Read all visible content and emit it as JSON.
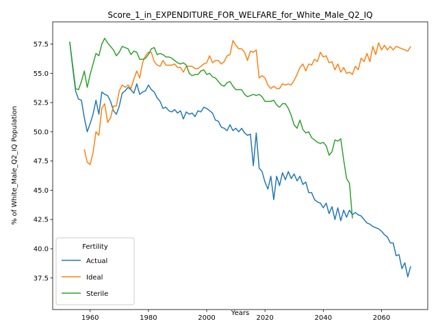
{
  "chart_data": {
    "type": "line",
    "title": "Score_1_in_EXPENDITURE_FOR_WELFARE_for_White_Male_Q2_IQ",
    "xlabel": "Years",
    "ylabel": "% of White_Male_Q2_IQ Population",
    "legend_title": "Fertility",
    "legend": "lower left",
    "grid": false,
    "xlim": [
      1947.15,
      2075.85
    ],
    "ylim": [
      34.8,
      59.4
    ],
    "xticks": [
      1960,
      1980,
      2000,
      2020,
      2040,
      2060
    ],
    "yticks": [
      37.5,
      {
        "value": 40,
        "label": "40.0"
      },
      42.5,
      {
        "value": 45,
        "label": "45.0"
      },
      47.5,
      {
        "value": 50,
        "label": "50.0"
      },
      52.5,
      {
        "value": 55,
        "label": "55.0"
      },
      57.5
    ],
    "x": [
      1953,
      1954,
      1955,
      1956,
      1957,
      1958,
      1959,
      1960,
      1961,
      1962,
      1963,
      1964,
      1965,
      1966,
      1967,
      1968,
      1969,
      1970,
      1971,
      1972,
      1973,
      1974,
      1975,
      1976,
      1977,
      1978,
      1979,
      1980,
      1981,
      1982,
      1983,
      1984,
      1985,
      1986,
      1987,
      1988,
      1989,
      1990,
      1991,
      1992,
      1993,
      1994,
      1995,
      1996,
      1997,
      1998,
      1999,
      2000,
      2001,
      2002,
      2003,
      2004,
      2005,
      2006,
      2007,
      2008,
      2009,
      2010,
      2011,
      2012,
      2013,
      2014,
      2015,
      2016,
      2017,
      2018,
      2019,
      2020,
      2021,
      2022,
      2023,
      2024,
      2025,
      2026,
      2027,
      2028,
      2029,
      2030,
      2031,
      2032,
      2033,
      2034,
      2035,
      2036,
      2037,
      2038,
      2039,
      2040,
      2041,
      2042,
      2043,
      2044,
      2045,
      2046,
      2047,
      2048,
      2049,
      2050,
      2051,
      2052,
      2053,
      2054,
      2055,
      2056,
      2057,
      2058,
      2059,
      2060,
      2061,
      2062,
      2063,
      2064,
      2065,
      2066,
      2067,
      2068,
      2069,
      2070
    ],
    "series": [
      {
        "name": "Actual",
        "color": "#1f77b4",
        "values": [
          57.7,
          55.5,
          53.5,
          52.8,
          52.7,
          51.2,
          50.0,
          50.7,
          51.5,
          52.7,
          51.5,
          53.4,
          53.2,
          53.1,
          52.6,
          51.8,
          51.5,
          52.2,
          53.3,
          53.5,
          53.8,
          53.6,
          53.3,
          54.1,
          53.2,
          53.4,
          53.5,
          54.0,
          53.6,
          53.4,
          52.9,
          52.6,
          52.0,
          52.1,
          51.8,
          51.7,
          51.9,
          51.6,
          51.8,
          51.1,
          51.7,
          51.5,
          51.6,
          51.3,
          51.8,
          51.7,
          52.1,
          52.0,
          51.8,
          51.6,
          51.0,
          50.9,
          50.4,
          50.3,
          50.1,
          50.6,
          50.1,
          50.3,
          50.0,
          50.3,
          49.9,
          49.7,
          49.8,
          47.1,
          49.9,
          46.9,
          46.6,
          45.7,
          45.1,
          46.2,
          44.2,
          46.2,
          45.4,
          46.5,
          45.9,
          46.6,
          46.0,
          46.4,
          45.8,
          46.2,
          45.5,
          45.7,
          44.8,
          44.8,
          44.2,
          44.0,
          43.9,
          43.5,
          43.9,
          43.0,
          43.6,
          42.5,
          43.5,
          42.4,
          43.3,
          42.7,
          43.3,
          42.9,
          43.1,
          42.9,
          42.8,
          42.5,
          42.2,
          42.1,
          41.9,
          41.8,
          41.7,
          41.5,
          41.2,
          41.0,
          40.5,
          40.5,
          39.4,
          39.5,
          38.3,
          38.8,
          37.6,
          38.5
        ]
      },
      {
        "name": "Ideal",
        "color": "#ff7f0e",
        "values": [
          null,
          null,
          null,
          null,
          null,
          48.5,
          47.4,
          47.2,
          48.2,
          50.0,
          49.7,
          52.0,
          52.4,
          50.8,
          51.2,
          52.2,
          52.2,
          53.5,
          54.0,
          53.8,
          54.0,
          53.7,
          54.5,
          55.2,
          54.6,
          55.9,
          56.5,
          56.8,
          56.8,
          56.0,
          55.7,
          55.6,
          56.1,
          55.7,
          55.7,
          55.7,
          55.8,
          55.5,
          55.5,
          55.1,
          55.6,
          55.6,
          55.6,
          55.4,
          55.4,
          55.6,
          55.8,
          55.9,
          56.5,
          55.9,
          56.1,
          56.1,
          55.8,
          56.0,
          56.5,
          56.6,
          57.8,
          57.4,
          57.1,
          57.1,
          56.8,
          56.1,
          56.9,
          56.8,
          57.0,
          54.6,
          54.8,
          54.6,
          54.0,
          53.7,
          53.9,
          53.7,
          53.7,
          54.1,
          54.0,
          54.1,
          54.0,
          54.4,
          54.9,
          55.5,
          55.8,
          55.2,
          55.8,
          55.7,
          56.2,
          56.0,
          56.8,
          56.4,
          56.5,
          55.9,
          56.0,
          55.3,
          55.8,
          55.1,
          55.5,
          55.0,
          55.1,
          54.9,
          55.6,
          55.3,
          56.3,
          56.0,
          56.7,
          56.0,
          57.3,
          56.6,
          57.6,
          57.0,
          57.4,
          57.0,
          57.3,
          57.0,
          57.3,
          57.2,
          57.1,
          57.0,
          56.9,
          57.3
        ]
      },
      {
        "name": "Sterile",
        "color": "#2ca02c",
        "values": [
          57.7,
          55.7,
          53.7,
          53.6,
          54.3,
          55.2,
          53.8,
          54.9,
          55.8,
          56.7,
          56.5,
          57.5,
          58.0,
          57.6,
          57.3,
          57.0,
          56.5,
          56.8,
          57.3,
          57.2,
          57.1,
          56.6,
          56.9,
          56.8,
          56.2,
          56.2,
          56.3,
          56.6,
          57.1,
          57.2,
          56.6,
          56.7,
          56.6,
          56.4,
          56.4,
          56.3,
          56.1,
          55.9,
          55.8,
          55.9,
          55.7,
          55.0,
          54.8,
          54.9,
          54.9,
          55.2,
          55.3,
          54.9,
          55.0,
          54.7,
          54.6,
          54.3,
          54.0,
          53.9,
          54.2,
          54.3,
          53.9,
          53.6,
          53.6,
          53.6,
          53.2,
          53.0,
          53.1,
          53.2,
          53.1,
          53.2,
          53.0,
          52.6,
          52.6,
          52.6,
          52.7,
          52.3,
          52.1,
          52.4,
          52.4,
          52.0,
          51.4,
          50.6,
          50.3,
          51.0,
          50.2,
          49.9,
          50.0,
          49.5,
          49.3,
          49.1,
          49.0,
          49.1,
          48.8,
          48.0,
          48.3,
          49.3,
          49.2,
          49.4,
          47.6,
          46.0,
          45.6,
          42.6,
          null,
          null,
          null,
          null,
          null,
          null,
          null,
          null,
          null,
          null,
          null,
          null,
          null,
          null,
          null,
          null,
          null,
          null,
          null,
          null
        ]
      }
    ]
  }
}
